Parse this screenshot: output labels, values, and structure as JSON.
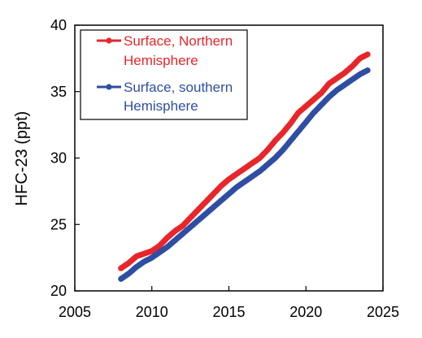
{
  "chart_data": {
    "type": "line",
    "title": "",
    "xlabel": "",
    "ylabel": "HFC-23 (ppt)",
    "xlim": [
      2005,
      2025
    ],
    "ylim": [
      20,
      40
    ],
    "xticks": [
      2005,
      2010,
      2015,
      2020,
      2025
    ],
    "yticks": [
      20,
      25,
      30,
      35,
      40
    ],
    "grid": false,
    "legend_position": "top-left",
    "series": [
      {
        "name_lines": [
          "Surface, Northern",
          "Hemisphere"
        ],
        "color": "#e8262a",
        "marker": "circle",
        "x": [
          2008.0,
          2008.5,
          2009.0,
          2009.5,
          2010.0,
          2010.5,
          2011.0,
          2011.5,
          2012.0,
          2012.5,
          2013.0,
          2013.5,
          2014.0,
          2014.5,
          2015.0,
          2015.5,
          2016.0,
          2016.5,
          2017.0,
          2017.5,
          2018.0,
          2018.5,
          2019.0,
          2019.5,
          2020.0,
          2020.5,
          2021.0,
          2021.5,
          2022.0,
          2022.5,
          2023.0,
          2023.5,
          2024.0
        ],
        "y": [
          21.7,
          22.1,
          22.6,
          22.8,
          23.0,
          23.4,
          24.0,
          24.5,
          24.9,
          25.5,
          26.1,
          26.7,
          27.3,
          27.9,
          28.4,
          28.8,
          29.2,
          29.6,
          30.0,
          30.6,
          31.3,
          31.9,
          32.6,
          33.4,
          33.9,
          34.4,
          34.9,
          35.6,
          36.0,
          36.4,
          36.9,
          37.5,
          37.8
        ]
      },
      {
        "name_lines": [
          "Surface, southern",
          "Hemisphere"
        ],
        "color": "#2f4ea3",
        "marker": "circle",
        "x": [
          2008.0,
          2008.5,
          2009.0,
          2009.5,
          2010.0,
          2010.5,
          2011.0,
          2011.5,
          2012.0,
          2012.5,
          2013.0,
          2013.5,
          2014.0,
          2014.5,
          2015.0,
          2015.5,
          2016.0,
          2016.5,
          2017.0,
          2017.5,
          2018.0,
          2018.5,
          2019.0,
          2019.5,
          2020.0,
          2020.5,
          2021.0,
          2021.5,
          2022.0,
          2022.5,
          2023.0,
          2023.5,
          2024.0
        ],
        "y": [
          20.9,
          21.3,
          21.8,
          22.2,
          22.5,
          22.9,
          23.3,
          23.8,
          24.3,
          24.8,
          25.3,
          25.8,
          26.3,
          26.8,
          27.3,
          27.8,
          28.2,
          28.6,
          29.0,
          29.5,
          30.0,
          30.6,
          31.3,
          32.0,
          32.7,
          33.4,
          34.0,
          34.6,
          35.1,
          35.5,
          35.9,
          36.3,
          36.6
        ]
      }
    ]
  }
}
